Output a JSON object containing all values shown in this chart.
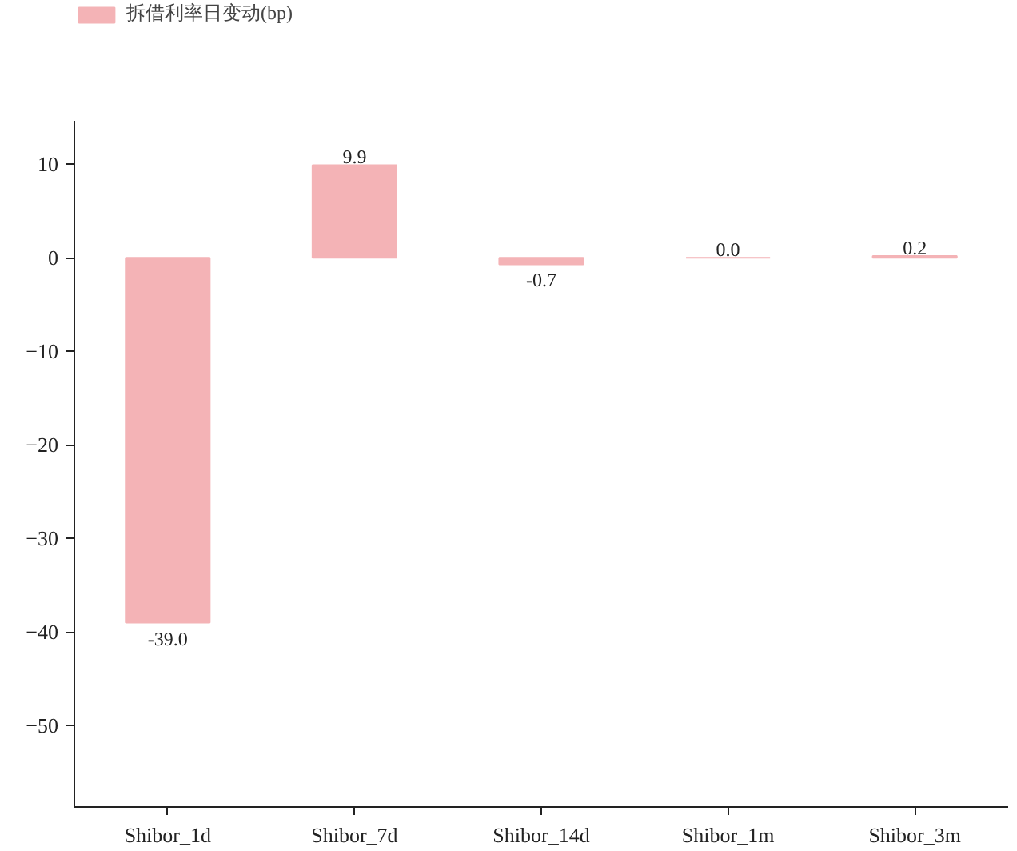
{
  "chart_data": {
    "type": "bar",
    "categories": [
      "Shibor_1d",
      "Shibor_7d",
      "Shibor_14d",
      "Shibor_1m",
      "Shibor_3m"
    ],
    "series": [
      {
        "name": "拆借利率日变动(bp)",
        "color": "#f4b3b6",
        "values": [
          -39.0,
          9.9,
          -0.7,
          0.0,
          0.2
        ]
      }
    ],
    "value_labels": [
      "-39.0",
      "9.9",
      "-0.7",
      "0.0",
      "0.2"
    ],
    "ylim": [
      -58.7,
      14.7
    ],
    "yticks": [
      {
        "value": -50,
        "label": "−50"
      },
      {
        "value": -40,
        "label": "−40"
      },
      {
        "value": -30,
        "label": "−30"
      },
      {
        "value": -20,
        "label": "−20"
      },
      {
        "value": -10,
        "label": "−10"
      },
      0,
      10
    ],
    "grid": false,
    "legend": "top left"
  }
}
